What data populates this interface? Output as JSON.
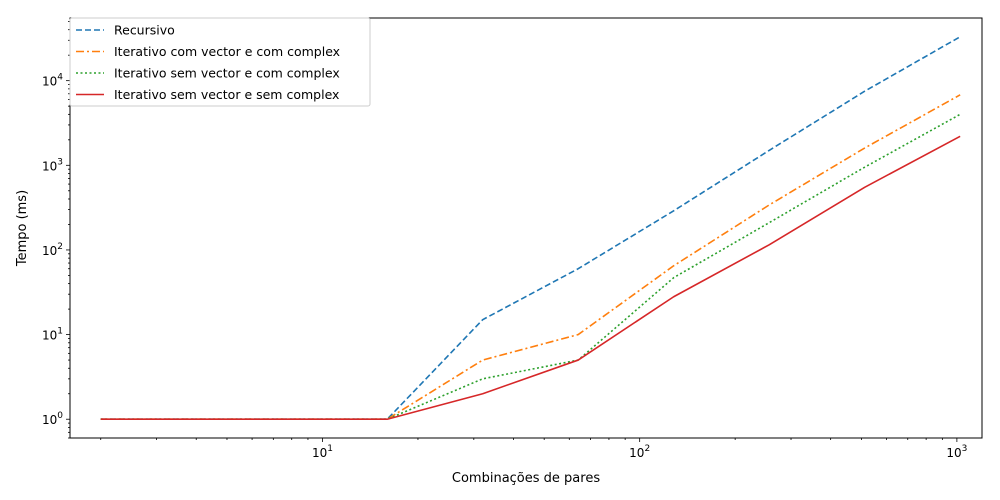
{
  "chart_data": {
    "type": "line",
    "xlabel": "Combinações de pares",
    "ylabel": "Tempo (ms)",
    "x_scale": "log",
    "y_scale": "log",
    "xlim": [
      1.6,
      1200
    ],
    "ylim": [
      0.6,
      55000
    ],
    "x": [
      2,
      4,
      8,
      16,
      32,
      64,
      128,
      256,
      512,
      1024
    ],
    "x_ticks": [
      {
        "value": 10,
        "base": "10",
        "exp": "1"
      },
      {
        "value": 100,
        "base": "10",
        "exp": "2"
      },
      {
        "value": 1000,
        "base": "10",
        "exp": "3"
      }
    ],
    "y_ticks": [
      {
        "value": 1,
        "base": "10",
        "exp": "0"
      },
      {
        "value": 10,
        "base": "10",
        "exp": "1"
      },
      {
        "value": 100,
        "base": "10",
        "exp": "2"
      },
      {
        "value": 1000,
        "base": "10",
        "exp": "3"
      },
      {
        "value": 10000,
        "base": "10",
        "exp": "4"
      }
    ],
    "legend_position": "top-left",
    "grid": false,
    "series": [
      {
        "name": "Recursivo",
        "color": "#1f77b4",
        "style": "dashed",
        "values": [
          1,
          1,
          1,
          1,
          15,
          60,
          290,
          1500,
          7500,
          33000
        ]
      },
      {
        "name": "Iterativo com vector e com complex",
        "color": "#ff7f0e",
        "style": "dashdot",
        "values": [
          1,
          1,
          1,
          1,
          5,
          10,
          65,
          340,
          1600,
          6800
        ]
      },
      {
        "name": "Iterativo sem vector e com complex",
        "color": "#2ca02c",
        "style": "dotted",
        "values": [
          1,
          1,
          1,
          1,
          3,
          5,
          47,
          210,
          950,
          4000
        ]
      },
      {
        "name": "Iterativo sem vector e sem complex",
        "color": "#d62728",
        "style": "solid",
        "values": [
          1,
          1,
          1,
          1,
          2,
          5,
          28,
          115,
          550,
          2200
        ]
      }
    ]
  }
}
